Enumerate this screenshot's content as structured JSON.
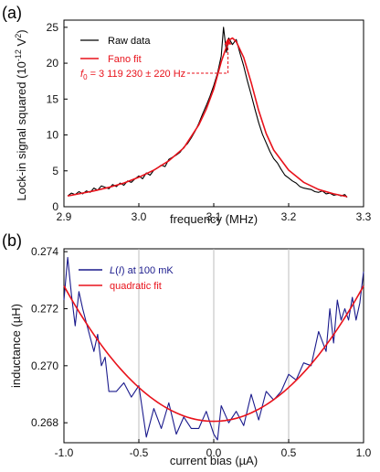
{
  "chart_data": [
    {
      "panel": "(a)",
      "type": "line",
      "xlabel": "frequency (MHz)",
      "ylabel": "Lock-in signal squared (10",
      "ylabel_sup": "-12",
      "ylabel_unit": " V",
      "ylabel_sup2": "2",
      "ylabel_end": ")",
      "xlim": [
        2.9,
        3.3
      ],
      "ylim": [
        0,
        26
      ],
      "xticks": [
        "2.9",
        "3.0",
        "3.1",
        "3.2",
        "3.3"
      ],
      "yticks": [
        "0",
        "5",
        "10",
        "15",
        "20",
        "25"
      ],
      "legend_position": "top-left",
      "series": [
        {
          "name": "Raw data",
          "color": "#000000",
          "x": [
            2.905,
            2.91,
            2.915,
            2.92,
            2.925,
            2.93,
            2.935,
            2.94,
            2.945,
            2.95,
            2.955,
            2.96,
            2.965,
            2.97,
            2.975,
            2.98,
            2.985,
            2.99,
            2.995,
            3.0,
            3.005,
            3.01,
            3.015,
            3.02,
            3.025,
            3.03,
            3.035,
            3.04,
            3.045,
            3.05,
            3.055,
            3.06,
            3.065,
            3.07,
            3.075,
            3.08,
            3.085,
            3.09,
            3.095,
            3.1,
            3.105,
            3.11,
            3.113,
            3.117,
            3.12,
            3.125,
            3.13,
            3.135,
            3.14,
            3.145,
            3.15,
            3.155,
            3.16,
            3.165,
            3.17,
            3.175,
            3.18,
            3.185,
            3.19,
            3.195,
            3.2,
            3.205,
            3.21,
            3.215,
            3.22,
            3.225,
            3.23,
            3.235,
            3.24,
            3.245,
            3.25,
            3.255,
            3.26,
            3.265,
            3.27,
            3.275,
            3.278
          ],
          "y": [
            1.5,
            1.9,
            1.7,
            2.1,
            1.8,
            2.2,
            2.0,
            2.6,
            2.3,
            2.9,
            2.7,
            2.5,
            3.1,
            2.8,
            3.3,
            3.0,
            3.6,
            3.4,
            3.9,
            4.3,
            3.9,
            4.7,
            4.4,
            5.1,
            5.4,
            5.8,
            5.6,
            6.6,
            6.9,
            7.2,
            7.6,
            8.3,
            8.8,
            9.6,
            10.5,
            11.6,
            12.9,
            14.1,
            15.4,
            16.9,
            18.6,
            21.0,
            25.0,
            21.5,
            23.5,
            22.6,
            23.3,
            21.4,
            19.6,
            17.5,
            15.6,
            13.6,
            11.7,
            10.1,
            8.9,
            7.7,
            6.7,
            6.1,
            5.2,
            4.4,
            4.0,
            3.6,
            3.3,
            2.8,
            2.6,
            2.5,
            2.4,
            2.1,
            2.0,
            2.2,
            1.8,
            1.9,
            1.6,
            1.7,
            1.5,
            1.7,
            1.3
          ]
        },
        {
          "name": "Fano fit",
          "color": "#e8121b",
          "x": [
            2.905,
            2.92,
            2.94,
            2.96,
            2.98,
            3.0,
            3.02,
            3.04,
            3.06,
            3.08,
            3.09,
            3.1,
            3.11,
            3.12,
            3.125,
            3.13,
            3.14,
            3.15,
            3.16,
            3.17,
            3.18,
            3.2,
            3.22,
            3.24,
            3.26,
            3.278
          ],
          "y": [
            1.5,
            1.8,
            2.2,
            2.7,
            3.3,
            4.1,
            5.1,
            6.4,
            8.2,
            11.4,
            13.6,
            16.4,
            20.2,
            23.2,
            23.5,
            23.0,
            20.8,
            17.3,
            13.4,
            10.2,
            7.9,
            5.1,
            3.4,
            2.4,
            1.8,
            1.4
          ]
        }
      ],
      "annotation": {
        "label": "f",
        "label_sub": "0",
        "label_rest": " = 3 119 230 ± 220 Hz",
        "x": 3.119,
        "y_from": 18.6,
        "y_to": 23.5,
        "color": "#e8121b"
      }
    },
    {
      "panel": "(b)",
      "type": "line",
      "xlabel": "current bias (µA)",
      "ylabel": "inductance (µH)",
      "xlim": [
        -1.0,
        1.0
      ],
      "ylim": [
        0.2673,
        0.2741
      ],
      "xticks": [
        "-1.0",
        "-0.5",
        "0.0",
        "0.5",
        "1.0"
      ],
      "yticks": [
        "0.268",
        "0.270",
        "0.272",
        "0.274"
      ],
      "grid_x": [
        -0.5,
        0.0,
        0.5
      ],
      "legend_position": "top-left",
      "series": [
        {
          "name": "L(I) at 100 mK",
          "name_italic": "L",
          "name_paren": "(",
          "name_italic2": "I",
          "name_rest": ") at 100 mK",
          "color": "#1a1a8c",
          "x": [
            -1.0,
            -0.975,
            -0.95,
            -0.925,
            -0.9,
            -0.875,
            -0.85,
            -0.8,
            -0.775,
            -0.75,
            -0.725,
            -0.7,
            -0.65,
            -0.6,
            -0.55,
            -0.5,
            -0.45,
            -0.4,
            -0.35,
            -0.3,
            -0.25,
            -0.2,
            -0.15,
            -0.1,
            -0.05,
            0.0,
            0.025,
            0.05,
            0.1,
            0.15,
            0.2,
            0.25,
            0.3,
            0.35,
            0.4,
            0.45,
            0.5,
            0.55,
            0.6,
            0.65,
            0.7,
            0.75,
            0.775,
            0.8,
            0.825,
            0.85,
            0.875,
            0.9,
            0.925,
            0.95,
            0.975,
            1.0
          ],
          "y": [
            0.2723,
            0.2738,
            0.2725,
            0.2714,
            0.2726,
            0.272,
            0.2715,
            0.2705,
            0.2711,
            0.27,
            0.2703,
            0.2691,
            0.2691,
            0.2694,
            0.2689,
            0.2693,
            0.2675,
            0.2685,
            0.2678,
            0.2687,
            0.2676,
            0.2682,
            0.2678,
            0.2678,
            0.2684,
            0.2676,
            0.2674,
            0.2686,
            0.268,
            0.2684,
            0.2679,
            0.269,
            0.2681,
            0.2691,
            0.2688,
            0.2691,
            0.2697,
            0.2695,
            0.2701,
            0.27,
            0.2712,
            0.2705,
            0.272,
            0.2708,
            0.2723,
            0.2716,
            0.272,
            0.2716,
            0.2724,
            0.2716,
            0.2722,
            0.2733
          ]
        },
        {
          "name": "quadratic fit",
          "color": "#e8121b",
          "function": "quadratic",
          "coeffs": {
            "a": 0.00475,
            "b": 0.0,
            "c": 0.26805
          }
        }
      ]
    }
  ]
}
